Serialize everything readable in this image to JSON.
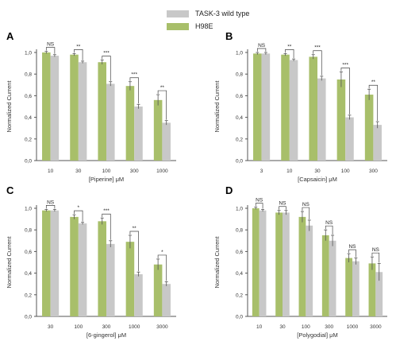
{
  "legend": {
    "items": [
      {
        "label": "TASK-3 wild type",
        "color": "#c8c8c8"
      },
      {
        "label": "H98E",
        "color": "#a8bf6a"
      }
    ]
  },
  "colors": {
    "wild_type": "#c8c8c8",
    "h98e": "#a8bf6a",
    "axis": "#555555",
    "bracket": "#444444"
  },
  "chart_data": [
    {
      "panel": "A",
      "type": "bar",
      "xlabel": "[Piperine] μM",
      "ylabel": "Normalized Current",
      "ylim": [
        0,
        1.0
      ],
      "yticks": [
        "0,0",
        "0,2",
        "0,4",
        "0,6",
        "0,8",
        "1,0"
      ],
      "categories": [
        "10",
        "30",
        "100",
        "300",
        "1000"
      ],
      "series": [
        {
          "name": "H98E",
          "values": [
            1.0,
            0.98,
            0.91,
            0.69,
            0.56
          ],
          "errors": [
            0.01,
            0.01,
            0.02,
            0.04,
            0.05
          ]
        },
        {
          "name": "TASK-3 wild type",
          "values": [
            0.97,
            0.91,
            0.71,
            0.5,
            0.35
          ],
          "errors": [
            0.01,
            0.01,
            0.02,
            0.02,
            0.02
          ]
        }
      ],
      "significance": [
        "NS",
        "**",
        "***",
        "***",
        "**"
      ]
    },
    {
      "panel": "B",
      "type": "bar",
      "xlabel": "[Capsaicin] μM",
      "ylabel": "Normalized Current",
      "ylim": [
        0,
        1.0
      ],
      "yticks": [
        "0,0",
        "0,2",
        "0,4",
        "0,6",
        "0,8",
        "1,0"
      ],
      "categories": [
        "3",
        "10",
        "30",
        "100",
        "300"
      ],
      "series": [
        {
          "name": "H98E",
          "values": [
            0.99,
            0.98,
            0.96,
            0.75,
            0.61
          ],
          "errors": [
            0.01,
            0.01,
            0.02,
            0.07,
            0.05
          ]
        },
        {
          "name": "TASK-3 wild type",
          "values": [
            0.99,
            0.93,
            0.76,
            0.4,
            0.33
          ],
          "errors": [
            0.01,
            0.01,
            0.02,
            0.02,
            0.03
          ]
        }
      ],
      "significance": [
        "NS",
        "**",
        "***",
        "***",
        "**"
      ]
    },
    {
      "panel": "C",
      "type": "bar",
      "xlabel": "[6-gingerol] μM",
      "ylabel": "Normalized Current",
      "ylim": [
        0,
        1.0
      ],
      "yticks": [
        "0,0",
        "0,2",
        "0,4",
        "0,6",
        "0,8",
        "1,0"
      ],
      "categories": [
        "30",
        "100",
        "300",
        "1000",
        "3000"
      ],
      "series": [
        {
          "name": "H98E",
          "values": [
            0.98,
            0.92,
            0.88,
            0.69,
            0.48
          ],
          "errors": [
            0.01,
            0.02,
            0.03,
            0.06,
            0.05
          ]
        },
        {
          "name": "TASK-3 wild type",
          "values": [
            0.98,
            0.86,
            0.67,
            0.39,
            0.3
          ],
          "errors": [
            0.01,
            0.01,
            0.03,
            0.02,
            0.02
          ]
        }
      ],
      "significance": [
        "NS",
        "*",
        "***",
        "**",
        "*"
      ]
    },
    {
      "panel": "D",
      "type": "bar",
      "xlabel": "[Polygodial] μM",
      "ylabel": "Normalized Current",
      "ylim": [
        0,
        1.0
      ],
      "yticks": [
        "0,0",
        "0,2",
        "0,4",
        "0,6",
        "0,8",
        "1,0"
      ],
      "categories": [
        "10",
        "30",
        "100",
        "300",
        "1000",
        "3000"
      ],
      "series": [
        {
          "name": "H98E",
          "values": [
            1.0,
            0.96,
            0.92,
            0.75,
            0.54,
            0.49
          ],
          "errors": [
            0.01,
            0.02,
            0.05,
            0.05,
            0.04,
            0.06
          ]
        },
        {
          "name": "TASK-3 wild type",
          "values": [
            0.98,
            0.96,
            0.84,
            0.7,
            0.51,
            0.41
          ],
          "errors": [
            0.01,
            0.02,
            0.05,
            0.05,
            0.03,
            0.08
          ]
        }
      ],
      "significance": [
        "NS",
        "NS",
        "NS",
        "NS",
        "NS",
        "NS"
      ]
    }
  ]
}
